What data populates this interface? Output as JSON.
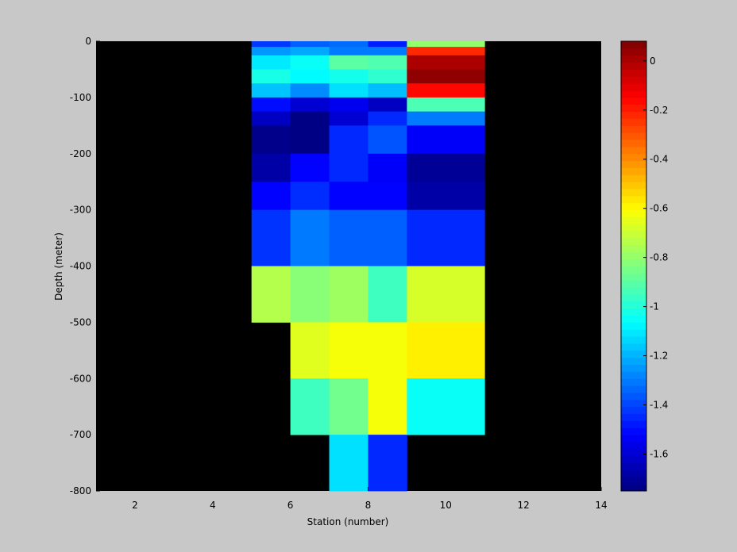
{
  "chart_data": {
    "type": "heatmap",
    "title": "",
    "xlabel": "Station (number)",
    "ylabel": "Depth (meter)",
    "xlim": [
      1,
      14
    ],
    "ylim": [
      -800,
      0
    ],
    "xticks": [
      2,
      4,
      6,
      8,
      10,
      12,
      14
    ],
    "yticks": [
      0,
      -100,
      -200,
      -300,
      -400,
      -500,
      -600,
      -700,
      -800
    ],
    "background_color": "#000000",
    "colorbar": {
      "placement": "right",
      "colormap": "jet",
      "range": [
        -1.75,
        0.08
      ],
      "ticks": [
        0,
        -0.2,
        -0.4,
        -0.6,
        -0.8,
        -1,
        -1.2,
        -1.4,
        -1.6
      ]
    },
    "cells": [
      {
        "x": [
          5,
          6
        ],
        "y": [
          -10,
          0
        ],
        "value": -1.42
      },
      {
        "x": [
          5,
          6
        ],
        "y": [
          -25,
          -10
        ],
        "value": -1.25
      },
      {
        "x": [
          5,
          6
        ],
        "y": [
          -50,
          -25
        ],
        "value": -1.1
      },
      {
        "x": [
          5,
          6
        ],
        "y": [
          -75,
          -50
        ],
        "value": -1.02
      },
      {
        "x": [
          5,
          6
        ],
        "y": [
          -100,
          -75
        ],
        "value": -1.17
      },
      {
        "x": [
          5,
          6
        ],
        "y": [
          -125,
          -100
        ],
        "value": -1.5
      },
      {
        "x": [
          5,
          6
        ],
        "y": [
          -150,
          -125
        ],
        "value": -1.63
      },
      {
        "x": [
          5,
          6
        ],
        "y": [
          -200,
          -150
        ],
        "value": -1.73
      },
      {
        "x": [
          5,
          6
        ],
        "y": [
          -250,
          -200
        ],
        "value": -1.68
      },
      {
        "x": [
          5,
          6
        ],
        "y": [
          -300,
          -250
        ],
        "value": -1.52
      },
      {
        "x": [
          5,
          6
        ],
        "y": [
          -400,
          -300
        ],
        "value": -1.43
      },
      {
        "x": [
          5,
          6
        ],
        "y": [
          -500,
          -400
        ],
        "value": -0.74
      },
      {
        "x": [
          6,
          7
        ],
        "y": [
          -10,
          0
        ],
        "value": -1.35
      },
      {
        "x": [
          6,
          7
        ],
        "y": [
          -25,
          -10
        ],
        "value": -1.22
      },
      {
        "x": [
          6,
          7
        ],
        "y": [
          -50,
          -25
        ],
        "value": -1.05
      },
      {
        "x": [
          6,
          7
        ],
        "y": [
          -75,
          -50
        ],
        "value": -1.07
      },
      {
        "x": [
          6,
          7
        ],
        "y": [
          -100,
          -75
        ],
        "value": -1.27
      },
      {
        "x": [
          6,
          7
        ],
        "y": [
          -125,
          -100
        ],
        "value": -1.6
      },
      {
        "x": [
          6,
          7
        ],
        "y": [
          -150,
          -125
        ],
        "value": -1.74
      },
      {
        "x": [
          6,
          7
        ],
        "y": [
          -200,
          -150
        ],
        "value": -1.74
      },
      {
        "x": [
          6,
          7
        ],
        "y": [
          -250,
          -200
        ],
        "value": -1.52
      },
      {
        "x": [
          6,
          7
        ],
        "y": [
          -300,
          -250
        ],
        "value": -1.44
      },
      {
        "x": [
          6,
          7
        ],
        "y": [
          -400,
          -300
        ],
        "value": -1.3
      },
      {
        "x": [
          6,
          7
        ],
        "y": [
          -500,
          -400
        ],
        "value": -0.82
      },
      {
        "x": [
          6,
          7
        ],
        "y": [
          -600,
          -500
        ],
        "value": -0.66
      },
      {
        "x": [
          6,
          7
        ],
        "y": [
          -700,
          -600
        ],
        "value": -0.95
      },
      {
        "x": [
          7,
          8
        ],
        "y": [
          -10,
          0
        ],
        "value": -1.33
      },
      {
        "x": [
          7,
          8
        ],
        "y": [
          -25,
          -10
        ],
        "value": -1.3
      },
      {
        "x": [
          7,
          8
        ],
        "y": [
          -50,
          -25
        ],
        "value": -0.9
      },
      {
        "x": [
          7,
          8
        ],
        "y": [
          -75,
          -50
        ],
        "value": -1.03
      },
      {
        "x": [
          7,
          8
        ],
        "y": [
          -100,
          -75
        ],
        "value": -1.12
      },
      {
        "x": [
          7,
          8
        ],
        "y": [
          -125,
          -100
        ],
        "value": -1.55
      },
      {
        "x": [
          7,
          8
        ],
        "y": [
          -150,
          -125
        ],
        "value": -1.6
      },
      {
        "x": [
          7,
          8
        ],
        "y": [
          -200,
          -150
        ],
        "value": -1.45
      },
      {
        "x": [
          7,
          8
        ],
        "y": [
          -250,
          -200
        ],
        "value": -1.45
      },
      {
        "x": [
          7,
          8
        ],
        "y": [
          -300,
          -250
        ],
        "value": -1.52
      },
      {
        "x": [
          7,
          8
        ],
        "y": [
          -400,
          -300
        ],
        "value": -1.35
      },
      {
        "x": [
          7,
          8
        ],
        "y": [
          -500,
          -400
        ],
        "value": -0.78
      },
      {
        "x": [
          7,
          8
        ],
        "y": [
          -600,
          -500
        ],
        "value": -0.62
      },
      {
        "x": [
          7,
          8
        ],
        "y": [
          -700,
          -600
        ],
        "value": -0.86
      },
      {
        "x": [
          7,
          8
        ],
        "y": [
          -800,
          -700
        ],
        "value": -1.12
      },
      {
        "x": [
          8,
          9
        ],
        "y": [
          -10,
          0
        ],
        "value": -1.47
      },
      {
        "x": [
          8,
          9
        ],
        "y": [
          -25,
          -10
        ],
        "value": -1.3
      },
      {
        "x": [
          8,
          9
        ],
        "y": [
          -50,
          -25
        ],
        "value": -0.92
      },
      {
        "x": [
          8,
          9
        ],
        "y": [
          -75,
          -50
        ],
        "value": -0.98
      },
      {
        "x": [
          8,
          9
        ],
        "y": [
          -100,
          -75
        ],
        "value": -1.18
      },
      {
        "x": [
          8,
          9
        ],
        "y": [
          -125,
          -100
        ],
        "value": -1.63
      },
      {
        "x": [
          8,
          9
        ],
        "y": [
          -150,
          -125
        ],
        "value": -1.45
      },
      {
        "x": [
          8,
          9
        ],
        "y": [
          -200,
          -150
        ],
        "value": -1.37
      },
      {
        "x": [
          8,
          9
        ],
        "y": [
          -250,
          -200
        ],
        "value": -1.53
      },
      {
        "x": [
          8,
          9
        ],
        "y": [
          -300,
          -250
        ],
        "value": -1.52
      },
      {
        "x": [
          8,
          9
        ],
        "y": [
          -400,
          -300
        ],
        "value": -1.35
      },
      {
        "x": [
          8,
          9
        ],
        "y": [
          -500,
          -400
        ],
        "value": -0.95
      },
      {
        "x": [
          8,
          9
        ],
        "y": [
          -600,
          -500
        ],
        "value": -0.62
      },
      {
        "x": [
          8,
          9
        ],
        "y": [
          -700,
          -600
        ],
        "value": -0.62
      },
      {
        "x": [
          8,
          9
        ],
        "y": [
          -800,
          -700
        ],
        "value": -1.45
      },
      {
        "x": [
          9,
          11
        ],
        "y": [
          -10,
          0
        ],
        "value": -0.8
      },
      {
        "x": [
          9,
          11
        ],
        "y": [
          -25,
          -10
        ],
        "value": -0.22
      },
      {
        "x": [
          9,
          11
        ],
        "y": [
          -50,
          -25
        ],
        "value": 0.0
      },
      {
        "x": [
          9,
          11
        ],
        "y": [
          -75,
          -50
        ],
        "value": 0.05
      },
      {
        "x": [
          9,
          11
        ],
        "y": [
          -100,
          -75
        ],
        "value": -0.16
      },
      {
        "x": [
          9,
          11
        ],
        "y": [
          -125,
          -100
        ],
        "value": -0.93
      },
      {
        "x": [
          9,
          11
        ],
        "y": [
          -150,
          -125
        ],
        "value": -1.3
      },
      {
        "x": [
          9,
          11
        ],
        "y": [
          -200,
          -150
        ],
        "value": -1.53
      },
      {
        "x": [
          9,
          11
        ],
        "y": [
          -250,
          -200
        ],
        "value": -1.71
      },
      {
        "x": [
          9,
          11
        ],
        "y": [
          -300,
          -250
        ],
        "value": -1.68
      },
      {
        "x": [
          9,
          11
        ],
        "y": [
          -400,
          -300
        ],
        "value": -1.45
      },
      {
        "x": [
          9,
          11
        ],
        "y": [
          -500,
          -400
        ],
        "value": -0.68
      },
      {
        "x": [
          9,
          11
        ],
        "y": [
          -600,
          -500
        ],
        "value": -0.58
      },
      {
        "x": [
          9,
          11
        ],
        "y": [
          -700,
          -600
        ],
        "value": -1.05
      }
    ]
  }
}
